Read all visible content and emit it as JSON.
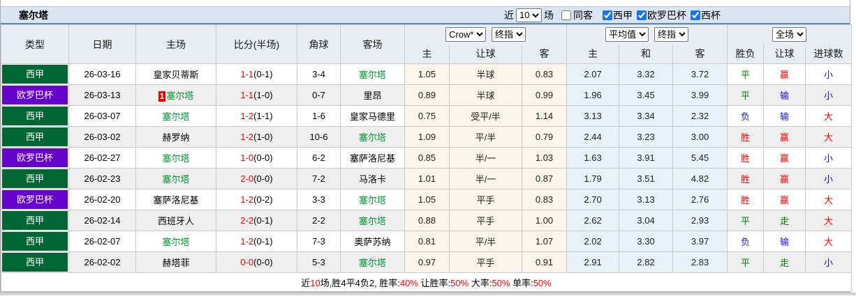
{
  "header": {
    "team": "塞尔塔",
    "recent_label": "近",
    "recent_value": "10",
    "matches_label": "场",
    "same_venue_label": "同客",
    "same_venue_checked": false,
    "leagues": [
      {
        "label": "西甲",
        "checked": true
      },
      {
        "label": "欧罗巴杯",
        "checked": true
      },
      {
        "label": "西杯",
        "checked": true
      }
    ]
  },
  "colors": {
    "liga_badge": "#006633",
    "europa_badge": "#6600cc",
    "focal_team": "#009933",
    "score_red": "#ff0000"
  },
  "table": {
    "columns": [
      "类型",
      "日期",
      "主场",
      "比分(半场)",
      "角球",
      "客场"
    ],
    "odds_group": {
      "select1": "Crow*",
      "select2": "终指",
      "sub": [
        "主",
        "让球",
        "客"
      ]
    },
    "avg_group": {
      "select1": "平均值",
      "select2": "终指",
      "sub": [
        "主",
        "和",
        "客"
      ]
    },
    "result_group": {
      "select": "全场",
      "sub": [
        "胜负",
        "让球",
        "进球数"
      ]
    },
    "type_colors": {
      "西甲": "#006633",
      "欧罗巴杯": "#6600cc"
    },
    "rows": [
      {
        "type": "西甲",
        "date": "26-03-16",
        "home": "皇家贝蒂斯",
        "home_focal": false,
        "home_badge": "",
        "away": "塞尔塔",
        "away_focal": true,
        "score_ft": "1-1",
        "score_ht": "(0-1)",
        "corners": "3-4",
        "odds": [
          "1.05",
          "半球",
          "0.83"
        ],
        "avg": [
          "2.07",
          "3.32",
          "3.72"
        ],
        "wdl": "平",
        "wdl_c": "green",
        "handicap": "赢",
        "handicap_c": "red",
        "goals": "小",
        "goals_c": "blue"
      },
      {
        "type": "欧罗巴杯",
        "date": "26-03-13",
        "home": "塞尔塔",
        "home_focal": true,
        "home_badge": "1",
        "away": "里昂",
        "away_focal": false,
        "score_ft": "1-1",
        "score_ht": "(1-0)",
        "corners": "0-7",
        "odds": [
          "0.89",
          "半球",
          "0.99"
        ],
        "avg": [
          "1.96",
          "3.45",
          "3.99"
        ],
        "wdl": "平",
        "wdl_c": "green",
        "handicap": "输",
        "handicap_c": "blue",
        "goals": "小",
        "goals_c": "blue"
      },
      {
        "type": "西甲",
        "date": "26-03-07",
        "home": "塞尔塔",
        "home_focal": true,
        "home_badge": "",
        "away": "皇家马德里",
        "away_focal": false,
        "score_ft": "1-2",
        "score_ht": "(1-1)",
        "corners": "1-6",
        "odds": [
          "0.75",
          "受平/半",
          "1.14"
        ],
        "avg": [
          "3.13",
          "3.34",
          "2.32"
        ],
        "wdl": "负",
        "wdl_c": "blue",
        "handicap": "输",
        "handicap_c": "blue",
        "goals": "大",
        "goals_c": "red"
      },
      {
        "type": "西甲",
        "date": "26-03-02",
        "home": "赫罗纳",
        "home_focal": false,
        "home_badge": "",
        "away": "塞尔塔",
        "away_focal": true,
        "score_ft": "1-2",
        "score_ht": "(1-0)",
        "corners": "10-6",
        "odds": [
          "1.09",
          "平/半",
          "0.79"
        ],
        "avg": [
          "2.44",
          "3.23",
          "3.00"
        ],
        "wdl": "胜",
        "wdl_c": "red",
        "handicap": "赢",
        "handicap_c": "red",
        "goals": "大",
        "goals_c": "red"
      },
      {
        "type": "欧罗巴杯",
        "date": "26-02-27",
        "home": "塞尔塔",
        "home_focal": true,
        "home_badge": "",
        "away": "塞萨洛尼基",
        "away_focal": false,
        "score_ft": "1-0",
        "score_ht": "(0-0)",
        "corners": "6-2",
        "odds": [
          "0.85",
          "半/一",
          "1.03"
        ],
        "avg": [
          "1.63",
          "3.91",
          "5.45"
        ],
        "wdl": "胜",
        "wdl_c": "red",
        "handicap": "赢",
        "handicap_c": "red",
        "goals": "小",
        "goals_c": "blue"
      },
      {
        "type": "西甲",
        "date": "26-02-23",
        "home": "塞尔塔",
        "home_focal": true,
        "home_badge": "",
        "away": "马洛卡",
        "away_focal": false,
        "score_ft": "2-0",
        "score_ht": "(0-0)",
        "corners": "7-2",
        "odds": [
          "1.01",
          "半/一",
          "0.87"
        ],
        "avg": [
          "1.79",
          "3.51",
          "4.82"
        ],
        "wdl": "胜",
        "wdl_c": "red",
        "handicap": "赢",
        "handicap_c": "red",
        "goals": "小",
        "goals_c": "blue"
      },
      {
        "type": "欧罗巴杯",
        "date": "26-02-20",
        "home": "塞萨洛尼基",
        "home_focal": false,
        "home_badge": "",
        "away": "塞尔塔",
        "away_focal": true,
        "score_ft": "1-2",
        "score_ht": "(0-2)",
        "corners": "3-3",
        "odds": [
          "1.05",
          "平手",
          "0.83"
        ],
        "avg": [
          "2.70",
          "3.13",
          "2.76"
        ],
        "wdl": "胜",
        "wdl_c": "red",
        "handicap": "赢",
        "handicap_c": "red",
        "goals": "大",
        "goals_c": "red"
      },
      {
        "type": "西甲",
        "date": "26-02-14",
        "home": "西班牙人",
        "home_focal": false,
        "home_badge": "",
        "away": "塞尔塔",
        "away_focal": true,
        "score_ft": "2-2",
        "score_ht": "(0-1)",
        "corners": "2-2",
        "odds": [
          "0.88",
          "平手",
          "1.00"
        ],
        "avg": [
          "2.62",
          "3.04",
          "2.93"
        ],
        "wdl": "平",
        "wdl_c": "green",
        "handicap": "走",
        "handicap_c": "green",
        "goals": "大",
        "goals_c": "red"
      },
      {
        "type": "西甲",
        "date": "26-02-07",
        "home": "塞尔塔",
        "home_focal": true,
        "home_badge": "",
        "away": "奥萨苏纳",
        "away_focal": false,
        "score_ft": "1-2",
        "score_ht": "(0-1)",
        "corners": "7-3",
        "odds": [
          "0.81",
          "平/半",
          "1.07"
        ],
        "avg": [
          "2.02",
          "3.30",
          "3.97"
        ],
        "wdl": "负",
        "wdl_c": "blue",
        "handicap": "输",
        "handicap_c": "blue",
        "goals": "大",
        "goals_c": "red"
      },
      {
        "type": "西甲",
        "date": "26-02-02",
        "home": "赫塔菲",
        "home_focal": false,
        "home_badge": "",
        "away": "塞尔塔",
        "away_focal": true,
        "score_ft": "0-0",
        "score_ht": "(0-0)",
        "corners": "5-3",
        "odds": [
          "0.97",
          "平手",
          "0.91"
        ],
        "avg": [
          "2.91",
          "2.82",
          "2.83"
        ],
        "wdl": "平",
        "wdl_c": "green",
        "handicap": "走",
        "handicap_c": "green",
        "goals": "小",
        "goals_c": "blue"
      }
    ]
  },
  "footer": {
    "segments": [
      {
        "text": "近",
        "color": "black"
      },
      {
        "text": "10",
        "color": "red"
      },
      {
        "text": "场,胜4平4负2, 胜率:",
        "color": "black"
      },
      {
        "text": "40%",
        "color": "red"
      },
      {
        "text": " 让胜率:",
        "color": "black"
      },
      {
        "text": "50%",
        "color": "red"
      },
      {
        "text": " 大率:",
        "color": "black"
      },
      {
        "text": "50%",
        "color": "red"
      },
      {
        "text": " 单率:",
        "color": "black"
      },
      {
        "text": "50%",
        "color": "red"
      }
    ]
  }
}
